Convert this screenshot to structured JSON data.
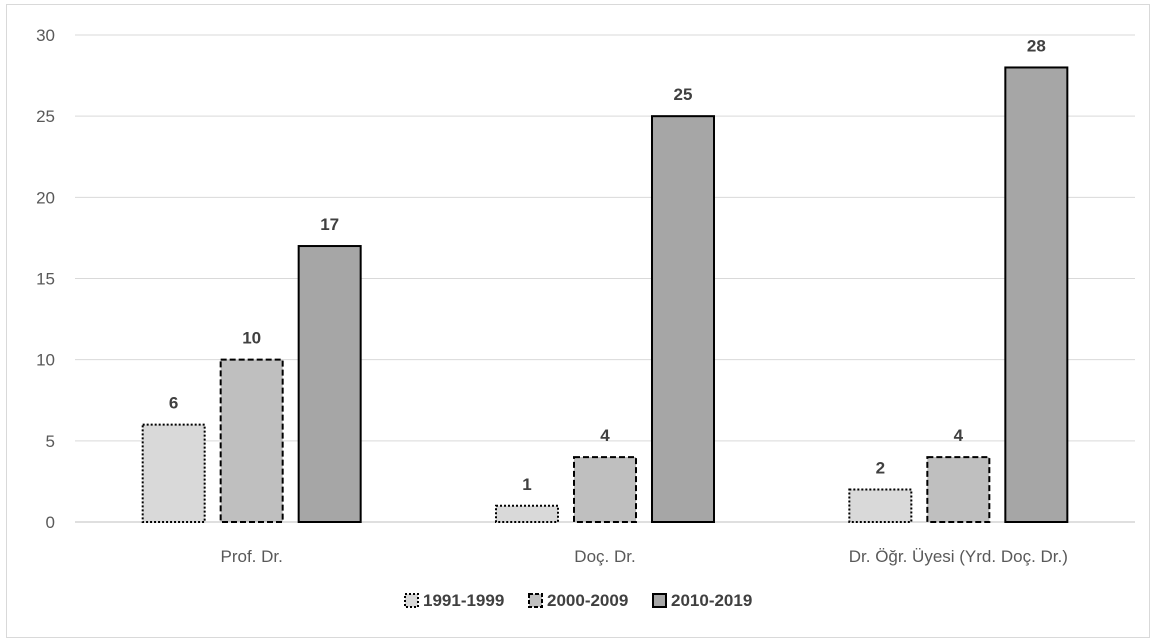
{
  "chart_data": {
    "type": "bar",
    "title": "",
    "xlabel": "",
    "ylabel": "",
    "categories": [
      "Prof. Dr.",
      "Doç. Dr.",
      "Dr. Öğr. Üyesi (Yrd. Doç. Dr.)"
    ],
    "series": [
      {
        "name": "1991-1999",
        "values": [
          6,
          1,
          2
        ],
        "color": "#d9d9d9",
        "border": "dotted"
      },
      {
        "name": "2000-2009",
        "values": [
          10,
          4,
          4
        ],
        "color": "#bfbfbf",
        "border": "dashed"
      },
      {
        "name": "2010-2019",
        "values": [
          17,
          25,
          28
        ],
        "color": "#a6a6a6",
        "border": "solid"
      }
    ],
    "ylim": [
      0,
      30
    ],
    "yticks": [
      0,
      5,
      10,
      15,
      20,
      25,
      30
    ],
    "grid": true,
    "legend_position": "bottom",
    "data_labels": true
  }
}
